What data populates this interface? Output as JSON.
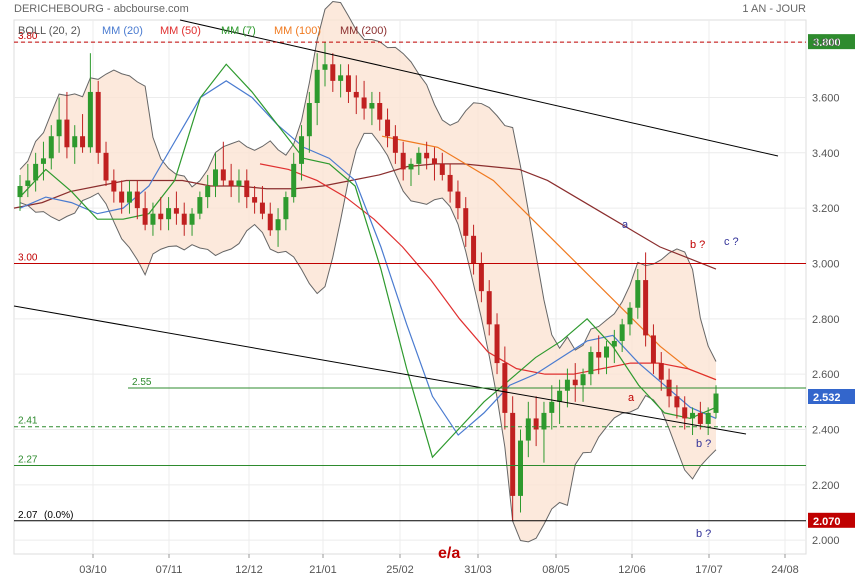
{
  "header": {
    "title": "DERICHEBOURG - abcbourse.com",
    "period": "1 AN - JOUR"
  },
  "legend": [
    {
      "label": "BOLL (20, 2)",
      "color": "#555555"
    },
    {
      "label": "MM (20)",
      "color": "#4a7bd0"
    },
    {
      "label": "MM (50)",
      "color": "#e03030"
    },
    {
      "label": "MM (7)",
      "color": "#2e9a2e"
    },
    {
      "label": "MM (100)",
      "color": "#f07a20"
    },
    {
      "label": "MM (200)",
      "color": "#8b2e2e"
    }
  ],
  "chart_data": {
    "type": "candlestick",
    "x_ticks": [
      "03/10",
      "07/11",
      "12/12",
      "21/01",
      "25/02",
      "31/03",
      "08/05",
      "12/06",
      "17/07",
      "24/08"
    ],
    "y_ticks": [
      "2.000",
      "2.200",
      "2.400",
      "2.600",
      "2.800",
      "3.000",
      "3.200",
      "3.400",
      "3.600",
      "3.800"
    ],
    "ylim": [
      1.95,
      3.88
    ],
    "last_price": "2.532",
    "last_price_color": "#3366cc",
    "levels": [
      {
        "label": "3.80",
        "value": 3.8,
        "style": "dashed",
        "color": "#c00000",
        "tag": "3.800",
        "tag_color": "#2e8b2e"
      },
      {
        "label": "3.00",
        "value": 3.0,
        "style": "solid",
        "color": "#c00000"
      },
      {
        "label": "2.55",
        "value": 2.55,
        "style": "solid",
        "color": "#2e8b2e"
      },
      {
        "label": "2.41",
        "value": 2.41,
        "style": "dashed",
        "color": "#2e8b2e"
      },
      {
        "label": "2.27",
        "value": 2.27,
        "style": "solid",
        "color": "#2e8b2e"
      },
      {
        "label": "2.07",
        "extra": "(0.0%)",
        "value": 2.07,
        "style": "solid",
        "color": "#000000",
        "tag": "2.070",
        "tag_color": "#c00000"
      }
    ],
    "annotations": [
      {
        "text": "a",
        "color": "#333399"
      },
      {
        "text": "b ?",
        "color": "#c00000"
      },
      {
        "text": "c ?",
        "color": "#333399"
      },
      {
        "text": "a",
        "color": "#c00000"
      },
      {
        "text": "b ?",
        "color": "#333399"
      },
      {
        "text": "b ?",
        "color": "#333399"
      },
      {
        "text": "e/a",
        "color": "#c00000"
      }
    ],
    "ohlc_approx": [
      [
        3.24,
        3.32,
        3.19,
        3.28
      ],
      [
        3.28,
        3.36,
        3.24,
        3.3
      ],
      [
        3.3,
        3.4,
        3.26,
        3.36
      ],
      [
        3.36,
        3.44,
        3.3,
        3.38
      ],
      [
        3.38,
        3.5,
        3.34,
        3.46
      ],
      [
        3.46,
        3.6,
        3.4,
        3.52
      ],
      [
        3.52,
        3.62,
        3.38,
        3.42
      ],
      [
        3.42,
        3.5,
        3.36,
        3.46
      ],
      [
        3.46,
        3.54,
        3.4,
        3.42
      ],
      [
        3.42,
        3.76,
        3.4,
        3.62
      ],
      [
        3.62,
        3.66,
        3.36,
        3.4
      ],
      [
        3.4,
        3.44,
        3.28,
        3.3
      ],
      [
        3.3,
        3.34,
        3.22,
        3.26
      ],
      [
        3.26,
        3.3,
        3.18,
        3.22
      ],
      [
        3.22,
        3.3,
        3.18,
        3.26
      ],
      [
        3.26,
        3.3,
        3.16,
        3.2
      ],
      [
        3.2,
        3.26,
        3.12,
        3.14
      ],
      [
        3.14,
        3.22,
        3.1,
        3.18
      ],
      [
        3.18,
        3.24,
        3.12,
        3.16
      ],
      [
        3.16,
        3.24,
        3.12,
        3.2
      ],
      [
        3.2,
        3.26,
        3.14,
        3.18
      ],
      [
        3.18,
        3.22,
        3.1,
        3.14
      ],
      [
        3.14,
        3.2,
        3.1,
        3.18
      ],
      [
        3.18,
        3.26,
        3.16,
        3.24
      ],
      [
        3.24,
        3.32,
        3.2,
        3.28
      ],
      [
        3.28,
        3.4,
        3.24,
        3.34
      ],
      [
        3.34,
        3.44,
        3.28,
        3.3
      ],
      [
        3.3,
        3.36,
        3.24,
        3.28
      ],
      [
        3.28,
        3.34,
        3.22,
        3.3
      ],
      [
        3.3,
        3.34,
        3.2,
        3.24
      ],
      [
        3.24,
        3.28,
        3.18,
        3.22
      ],
      [
        3.22,
        3.28,
        3.16,
        3.18
      ],
      [
        3.18,
        3.22,
        3.1,
        3.12
      ],
      [
        3.12,
        3.2,
        3.06,
        3.16
      ],
      [
        3.16,
        3.26,
        3.12,
        3.24
      ],
      [
        3.24,
        3.4,
        3.22,
        3.36
      ],
      [
        3.36,
        3.5,
        3.3,
        3.46
      ],
      [
        3.46,
        3.62,
        3.4,
        3.58
      ],
      [
        3.58,
        3.76,
        3.5,
        3.7
      ],
      [
        3.7,
        3.8,
        3.64,
        3.72
      ],
      [
        3.72,
        3.76,
        3.62,
        3.66
      ],
      [
        3.66,
        3.72,
        3.6,
        3.68
      ],
      [
        3.68,
        3.72,
        3.58,
        3.62
      ],
      [
        3.62,
        3.68,
        3.54,
        3.6
      ],
      [
        3.6,
        3.66,
        3.52,
        3.56
      ],
      [
        3.56,
        3.62,
        3.5,
        3.58
      ],
      [
        3.58,
        3.62,
        3.48,
        3.52
      ],
      [
        3.52,
        3.56,
        3.42,
        3.46
      ],
      [
        3.46,
        3.5,
        3.36,
        3.4
      ],
      [
        3.4,
        3.44,
        3.3,
        3.34
      ],
      [
        3.34,
        3.38,
        3.28,
        3.36
      ],
      [
        3.36,
        3.42,
        3.32,
        3.4
      ],
      [
        3.4,
        3.44,
        3.34,
        3.38
      ],
      [
        3.38,
        3.42,
        3.3,
        3.36
      ],
      [
        3.36,
        3.4,
        3.3,
        3.32
      ],
      [
        3.32,
        3.36,
        3.22,
        3.26
      ],
      [
        3.26,
        3.3,
        3.16,
        3.2
      ],
      [
        3.2,
        3.24,
        3.06,
        3.1
      ],
      [
        3.1,
        3.14,
        2.96,
        3.0
      ],
      [
        3.0,
        3.04,
        2.86,
        2.9
      ],
      [
        2.9,
        2.94,
        2.74,
        2.78
      ],
      [
        2.78,
        2.82,
        2.6,
        2.64
      ],
      [
        2.64,
        2.7,
        2.4,
        2.46
      ],
      [
        2.46,
        2.52,
        2.07,
        2.16
      ],
      [
        2.16,
        2.4,
        2.1,
        2.36
      ],
      [
        2.36,
        2.5,
        2.3,
        2.44
      ],
      [
        2.44,
        2.52,
        2.34,
        2.4
      ],
      [
        2.4,
        2.5,
        2.28,
        2.46
      ],
      [
        2.46,
        2.56,
        2.4,
        2.5
      ],
      [
        2.5,
        2.58,
        2.42,
        2.54
      ],
      [
        2.54,
        2.62,
        2.48,
        2.58
      ],
      [
        2.58,
        2.64,
        2.5,
        2.56
      ],
      [
        2.56,
        2.62,
        2.5,
        2.6
      ],
      [
        2.6,
        2.7,
        2.56,
        2.68
      ],
      [
        2.68,
        2.74,
        2.6,
        2.66
      ],
      [
        2.66,
        2.72,
        2.6,
        2.7
      ],
      [
        2.7,
        2.76,
        2.64,
        2.72
      ],
      [
        2.72,
        2.8,
        2.68,
        2.78
      ],
      [
        2.78,
        2.86,
        2.74,
        2.84
      ],
      [
        2.84,
        2.98,
        2.8,
        2.94
      ],
      [
        2.94,
        3.04,
        2.7,
        2.74
      ],
      [
        2.74,
        2.78,
        2.6,
        2.64
      ],
      [
        2.64,
        2.68,
        2.54,
        2.58
      ],
      [
        2.58,
        2.62,
        2.48,
        2.52
      ],
      [
        2.52,
        2.56,
        2.44,
        2.48
      ],
      [
        2.48,
        2.52,
        2.4,
        2.44
      ],
      [
        2.44,
        2.48,
        2.38,
        2.46
      ],
      [
        2.46,
        2.5,
        2.4,
        2.42
      ],
      [
        2.42,
        2.48,
        2.38,
        2.46
      ],
      [
        2.46,
        2.56,
        2.44,
        2.53
      ]
    ],
    "series": [
      {
        "name": "MM (200)",
        "color": "#8b2e2e",
        "values": [
          3.2,
          3.22,
          3.26,
          3.28,
          3.3,
          3.3,
          3.3,
          3.28,
          3.28,
          3.27,
          3.27,
          3.28,
          3.3,
          3.32,
          3.35,
          3.36,
          3.36,
          3.35,
          3.34,
          3.3,
          3.24,
          3.18,
          3.12,
          3.06,
          3.02,
          2.98
        ]
      },
      {
        "name": "MM (100)",
        "color": "#f07a20",
        "values": [
          3.46,
          3.44,
          3.42,
          3.36,
          3.3,
          3.2,
          3.1,
          3.0,
          2.9,
          2.8,
          2.7,
          2.62,
          2.58
        ]
      },
      {
        "name": "MM (50)",
        "color": "#e03030",
        "values": [
          3.36,
          3.34,
          3.3,
          3.24,
          3.16,
          3.06,
          2.94,
          2.8,
          2.68,
          2.62,
          2.6,
          2.6,
          2.62,
          2.64,
          2.64,
          2.62,
          2.58
        ]
      },
      {
        "name": "MM (20)",
        "color": "#4a7bd0",
        "values": [
          3.2,
          3.24,
          3.22,
          3.18,
          3.2,
          3.28,
          3.44,
          3.6,
          3.66,
          3.6,
          3.5,
          3.42,
          3.38,
          3.3,
          3.06,
          2.78,
          2.52,
          2.38,
          2.46,
          2.56,
          2.6,
          2.66,
          2.72,
          2.74,
          2.64,
          2.56,
          2.48,
          2.44
        ]
      },
      {
        "name": "MM (7)",
        "color": "#2e9a2e",
        "values": [
          3.24,
          3.34,
          3.26,
          3.16,
          3.16,
          3.18,
          3.3,
          3.6,
          3.72,
          3.62,
          3.5,
          3.38,
          3.36,
          3.28,
          2.98,
          2.62,
          2.3,
          2.4,
          2.5,
          2.58,
          2.66,
          2.72,
          2.8,
          2.7,
          2.56,
          2.46,
          2.44,
          2.48
        ]
      }
    ]
  }
}
